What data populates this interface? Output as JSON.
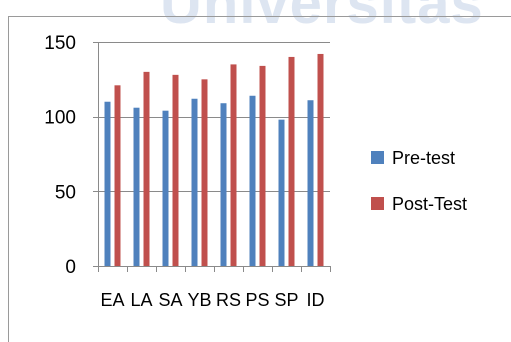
{
  "watermark": "Universitas",
  "chart_data": {
    "type": "bar",
    "categories": [
      "EA",
      "LA",
      "SA",
      "YB",
      "RS",
      "PS",
      "SP",
      "ID"
    ],
    "series": [
      {
        "name": "Pre-test",
        "color": "#4f81bd",
        "values": [
          110,
          106,
          104,
          112,
          109,
          114,
          98,
          111
        ]
      },
      {
        "name": "Post-Test",
        "color": "#c0504d",
        "values": [
          121,
          130,
          128,
          125,
          135,
          134,
          140,
          142
        ]
      }
    ],
    "yticks": [
      0,
      50,
      100,
      150
    ],
    "ylim": [
      0,
      150
    ],
    "grid": false,
    "legend_position": "right",
    "title": "",
    "xlabel": "",
    "ylabel": ""
  }
}
